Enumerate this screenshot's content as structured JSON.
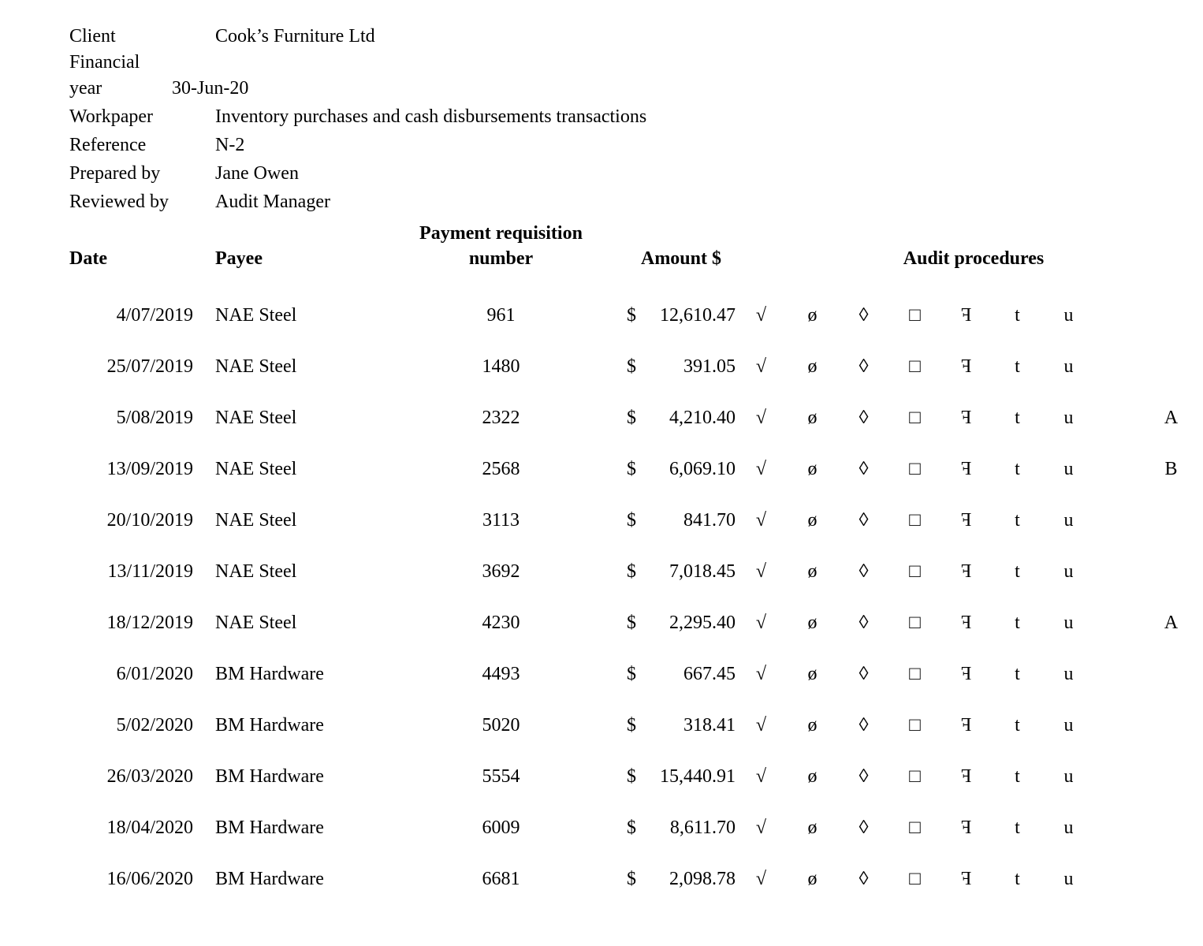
{
  "page": {
    "background_color": "#ffffff",
    "text_color": "#000000"
  },
  "info": {
    "rows": [
      {
        "label": "Client",
        "value": "Cook’s Furniture Ltd",
        "wrap_label": false
      },
      {
        "label": "Financial year",
        "value": "30-Jun-20",
        "wrap_label": true
      },
      {
        "label": "Workpaper",
        "value": "Inventory purchases and cash disbursements transactions",
        "wrap_label": false
      },
      {
        "label": "Reference",
        "value": "N-2",
        "wrap_label": false
      },
      {
        "label": "Prepared by",
        "value": "Jane Owen",
        "wrap_label": false
      },
      {
        "label": "Reviewed by",
        "value": "Audit Manager",
        "wrap_label": false
      }
    ]
  },
  "table": {
    "headers": {
      "date": "Date",
      "payee": "Payee",
      "requisition_line1": "Payment requisition",
      "requisition_line2": "number",
      "amount": "Amount $",
      "audit": "Audit procedures"
    },
    "audit_symbols": [
      {
        "name": "tick-mark-icon",
        "glyph": "√",
        "mirrored": false
      },
      {
        "name": "circle-slash-icon",
        "glyph": "ø",
        "mirrored": false
      },
      {
        "name": "diamond-icon",
        "glyph": "◊",
        "mirrored": false
      },
      {
        "name": "square-icon",
        "glyph": "□",
        "mirrored": false
      },
      {
        "name": "reversed-f-icon",
        "glyph": "F",
        "mirrored": true
      },
      {
        "name": "letter-t-mark",
        "glyph": "t",
        "mirrored": false
      },
      {
        "name": "letter-u-mark",
        "glyph": "u",
        "mirrored": false
      }
    ],
    "rows": [
      {
        "date": "4/07/2019",
        "payee": "NAE Steel",
        "requisition": "961",
        "currency": "$",
        "amount": "12,610.47",
        "note": ""
      },
      {
        "date": "25/07/2019",
        "payee": "NAE Steel",
        "requisition": "1480",
        "currency": "$",
        "amount": "391.05",
        "note": ""
      },
      {
        "date": "5/08/2019",
        "payee": "NAE Steel",
        "requisition": "2322",
        "currency": "$",
        "amount": "4,210.40",
        "note": "A"
      },
      {
        "date": "13/09/2019",
        "payee": "NAE Steel",
        "requisition": "2568",
        "currency": "$",
        "amount": "6,069.10",
        "note": "B"
      },
      {
        "date": "20/10/2019",
        "payee": "NAE Steel",
        "requisition": "3113",
        "currency": "$",
        "amount": "841.70",
        "note": ""
      },
      {
        "date": "13/11/2019",
        "payee": "NAE Steel",
        "requisition": "3692",
        "currency": "$",
        "amount": "7,018.45",
        "note": ""
      },
      {
        "date": "18/12/2019",
        "payee": "NAE Steel",
        "requisition": "4230",
        "currency": "$",
        "amount": "2,295.40",
        "note": "A"
      },
      {
        "date": "6/01/2020",
        "payee": "BM Hardware",
        "requisition": "4493",
        "currency": "$",
        "amount": "667.45",
        "note": ""
      },
      {
        "date": "5/02/2020",
        "payee": "BM Hardware",
        "requisition": "5020",
        "currency": "$",
        "amount": "318.41",
        "note": ""
      },
      {
        "date": "26/03/2020",
        "payee": "BM Hardware",
        "requisition": "5554",
        "currency": "$",
        "amount": "15,440.91",
        "note": ""
      },
      {
        "date": "18/04/2020",
        "payee": "BM Hardware",
        "requisition": "6009",
        "currency": "$",
        "amount": "8,611.70",
        "note": ""
      },
      {
        "date": "16/06/2020",
        "payee": "BM Hardware",
        "requisition": "6681",
        "currency": "$",
        "amount": "2,098.78",
        "note": ""
      }
    ]
  }
}
